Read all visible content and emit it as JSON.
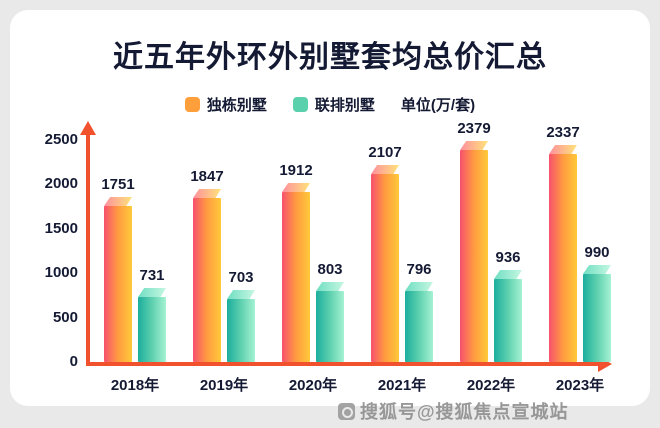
{
  "chart_data": {
    "type": "bar",
    "title": "近五年外环外别墅套均总价汇总",
    "unit_label": "单位(万/套)",
    "categories": [
      "2018年",
      "2019年",
      "2020年",
      "2021年",
      "2022年",
      "2023年"
    ],
    "series": [
      {
        "key": "detached-villa",
        "name": "独栋别墅",
        "values": [
          1751,
          1847,
          1912,
          2107,
          2379,
          2337
        ],
        "swatch": "#ff9f3c",
        "gradient": [
          "#f7516e",
          "#ff9b40",
          "#ffc93a"
        ],
        "cap_gradient": [
          "#ff8f9e",
          "#ffe37a"
        ]
      },
      {
        "key": "townhouse",
        "name": "联排别墅",
        "values": [
          731,
          703,
          803,
          796,
          936,
          990
        ],
        "swatch": "#5bd0ad",
        "gradient": [
          "#1cae9e",
          "#5ed0ae",
          "#a5f2d3"
        ],
        "cap_gradient": [
          "#6fdec2",
          "#c6f7e2"
        ]
      }
    ],
    "yticks": [
      0,
      500,
      1000,
      1500,
      2000,
      2500
    ],
    "ylim": [
      0,
      2500
    ],
    "axis_color": "#f1512d",
    "grid": false,
    "legend_position": "top"
  },
  "watermark": {
    "text": "搜狐号@搜狐焦点宣城站"
  }
}
